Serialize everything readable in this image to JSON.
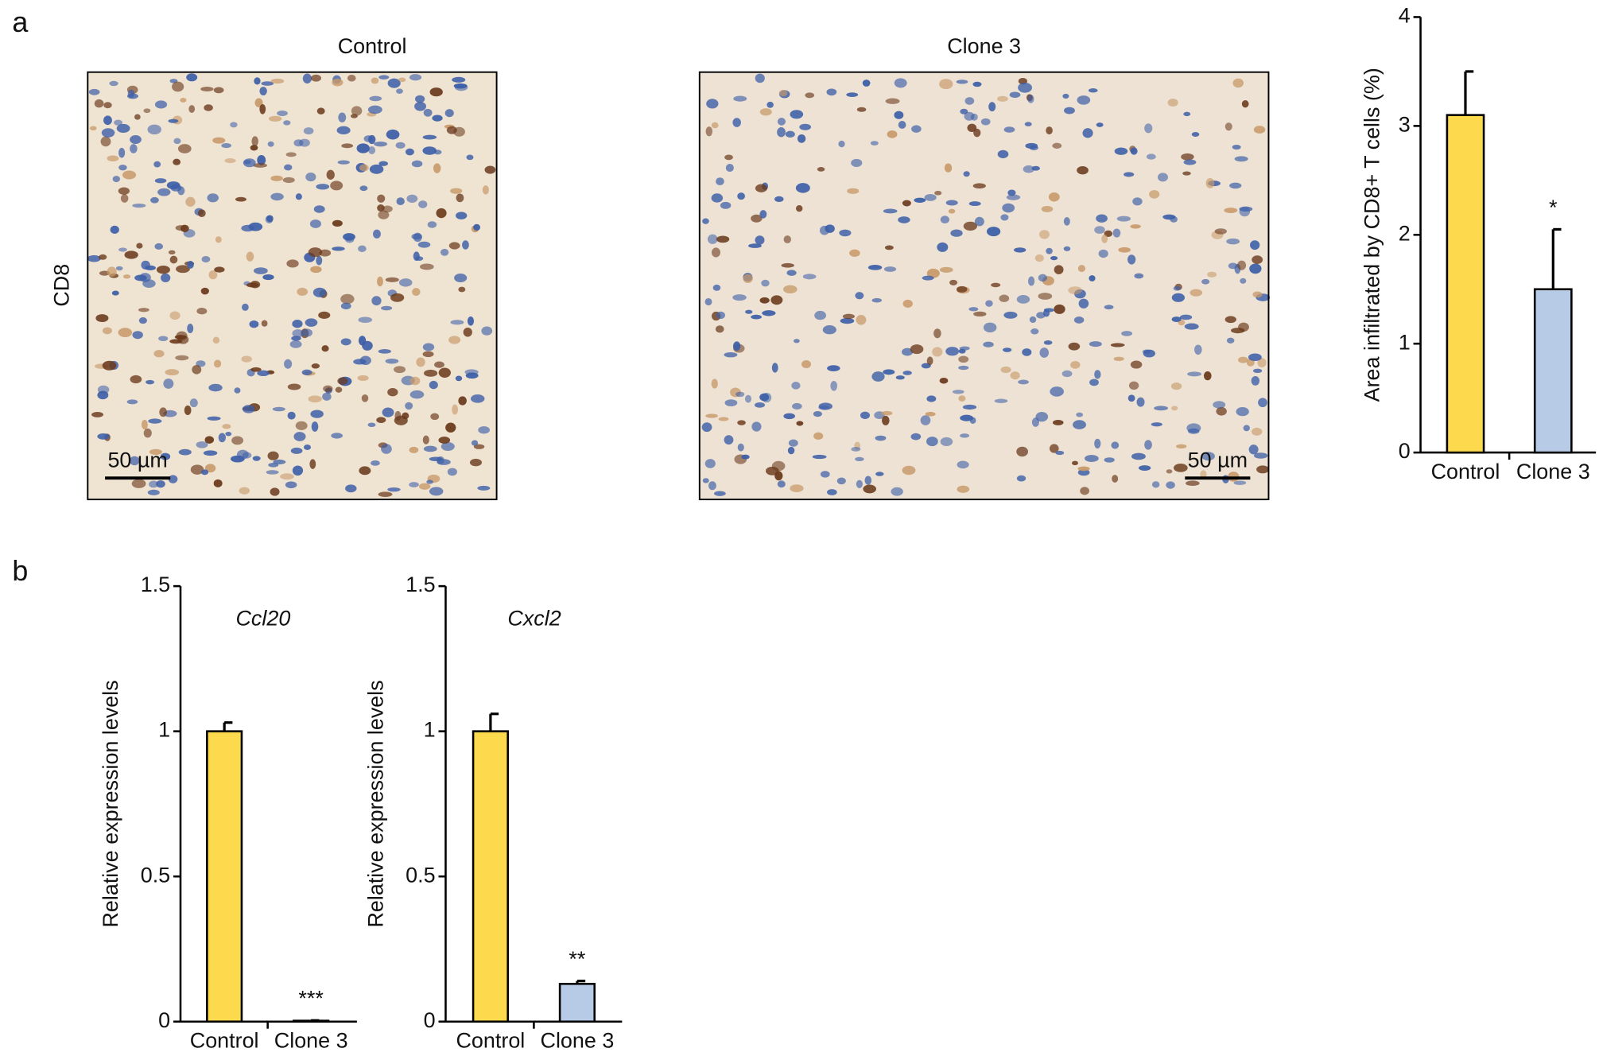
{
  "figure": {
    "panel_labels": [
      "a",
      "b"
    ],
    "row_label": "CD8",
    "images": [
      {
        "title": "Control",
        "scale_bar": "50 µm"
      },
      {
        "title": "Clone 3",
        "scale_bar": "50 µm"
      }
    ]
  },
  "chart_data": [
    {
      "type": "bar",
      "ylabel": "Area infiltrated by CD8+ T cells (%)",
      "categories": [
        "Control",
        "Clone 3"
      ],
      "values": [
        3.1,
        1.5
      ],
      "errors": [
        0.4,
        0.55
      ],
      "value_annotations": [
        null,
        "*"
      ],
      "colors": [
        "#fdd94e",
        "#b8cbe6"
      ],
      "ylim": [
        0,
        4
      ],
      "yticks": [
        0,
        1,
        2,
        3,
        4
      ]
    },
    {
      "type": "bar",
      "title": "Ccl20",
      "ylabel": "Relative expression levels",
      "categories": [
        "Control",
        "Clone 3"
      ],
      "values": [
        1,
        0.003
      ],
      "errors": [
        0.03,
        0.001
      ],
      "value_annotations": [
        null,
        "***"
      ],
      "colors": [
        "#fdd94e",
        "#b8cbe6"
      ],
      "ylim": [
        0,
        1.5
      ],
      "yticks": [
        0,
        0.5,
        1,
        1.5
      ]
    },
    {
      "type": "bar",
      "title": "Cxcl2",
      "ylabel": "Relative expression levels",
      "categories": [
        "Control",
        "Clone 3"
      ],
      "values": [
        1,
        0.13
      ],
      "errors": [
        0.06,
        0.01
      ],
      "value_annotations": [
        null,
        "**"
      ],
      "colors": [
        "#fdd94e",
        "#b8cbe6"
      ],
      "ylim": [
        0,
        1.5
      ],
      "yticks": [
        0,
        0.5,
        1,
        1.5
      ]
    }
  ]
}
